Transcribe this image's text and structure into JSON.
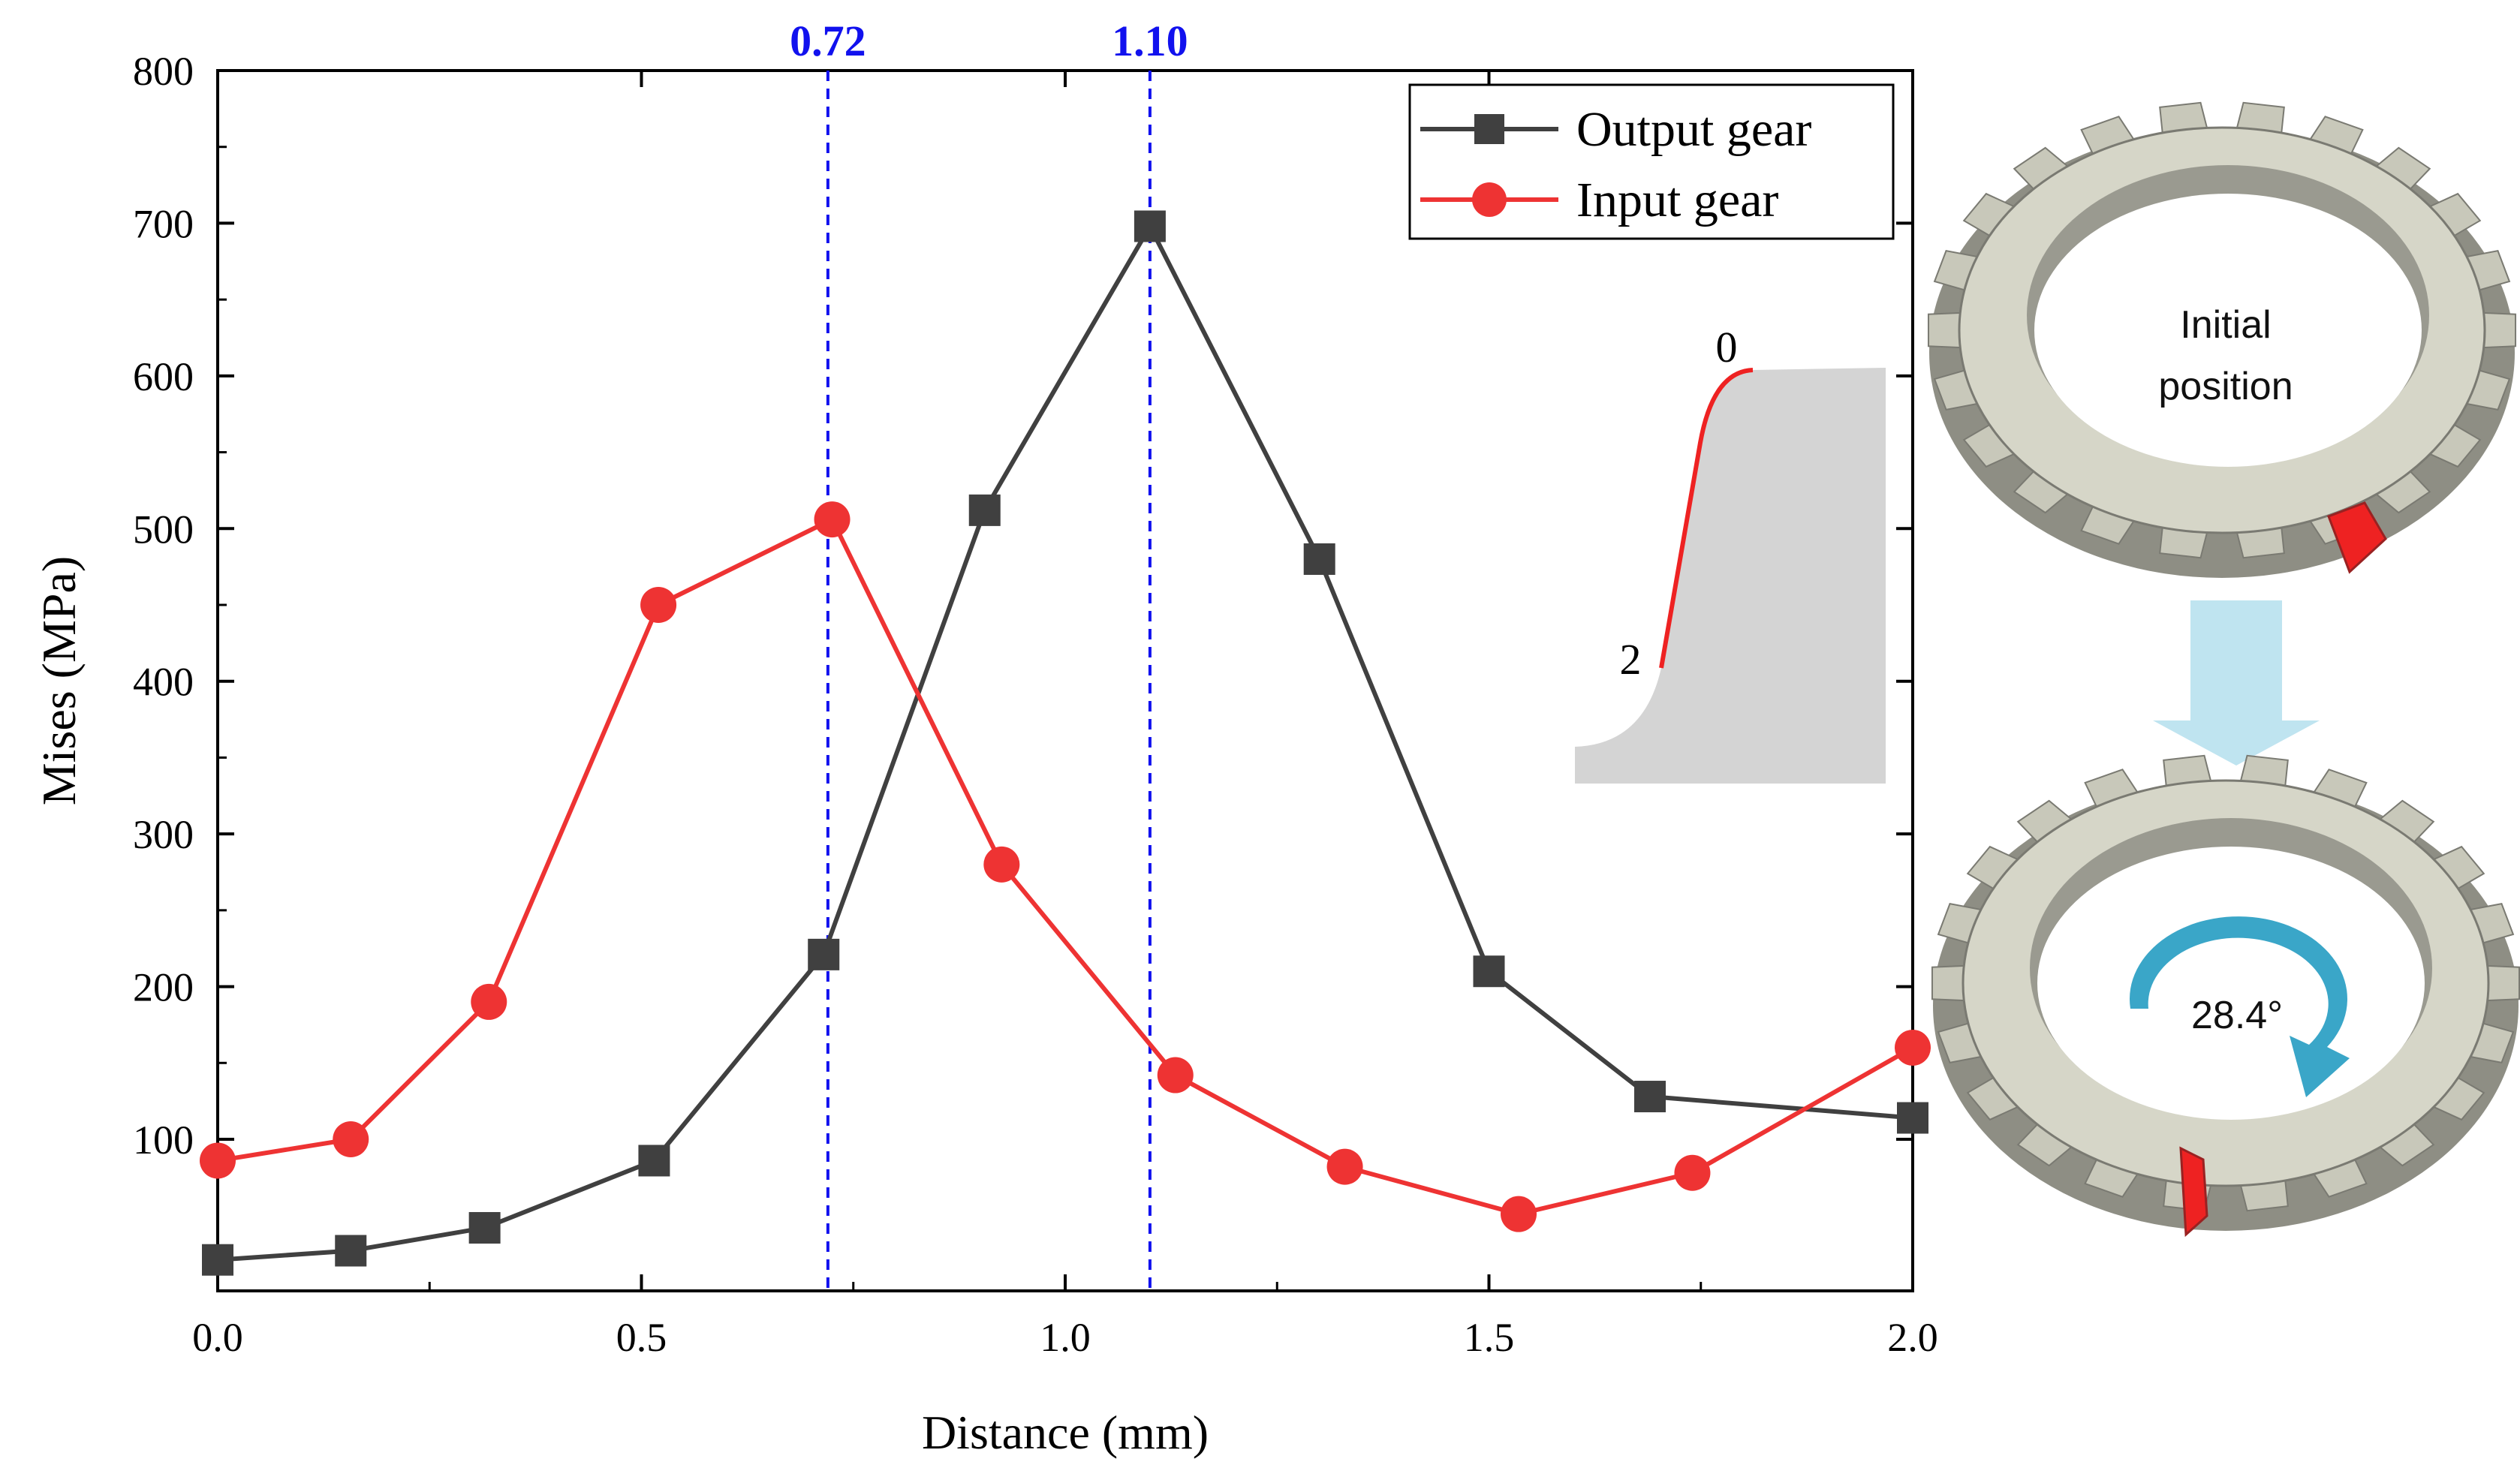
{
  "chart_data": {
    "type": "line",
    "title": "",
    "xlabel": "Distance (mm)",
    "ylabel": "Mises (MPa)",
    "xlim": [
      0.0,
      2.0
    ],
    "ylim": [
      0,
      800
    ],
    "xticks": [
      0.0,
      0.5,
      1.0,
      1.5,
      2.0
    ],
    "xtick_labels": [
      "0.0",
      "0.5",
      "1.0",
      "1.5",
      "2.0"
    ],
    "yticks": [
      100,
      200,
      300,
      400,
      500,
      600,
      700,
      800
    ],
    "ytick_labels": [
      "100",
      "200",
      "300",
      "400",
      "500",
      "600",
      "700",
      "800"
    ],
    "legend_position": "top-right",
    "series": [
      {
        "name": "Output gear",
        "color": "#404040",
        "marker": "square",
        "x": [
          0.0,
          0.157,
          0.315,
          0.515,
          0.715,
          0.905,
          1.1,
          1.3,
          1.5,
          1.69,
          2.0
        ],
        "y": [
          21,
          27,
          42,
          86,
          221,
          512,
          698,
          480,
          210,
          128,
          114
        ]
      },
      {
        "name": "Input gear",
        "color": "#ee3333",
        "marker": "circle",
        "x": [
          0.0,
          0.157,
          0.32,
          0.52,
          0.725,
          0.925,
          1.13,
          1.33,
          1.535,
          1.74,
          2.0
        ],
        "y": [
          86,
          100,
          190,
          450,
          506,
          280,
          142,
          82,
          51,
          78,
          160
        ]
      }
    ],
    "reference_lines": [
      {
        "x": 0.72,
        "label": "0.72",
        "color": "#1111ee"
      },
      {
        "x": 1.1,
        "label": "1.10",
        "color": "#1111ee"
      }
    ]
  },
  "inset": {
    "label_top": "0",
    "label_bottom": "2",
    "fill_color": "#d4d4d4",
    "highlight_color": "#ee2222"
  },
  "gear_panel": {
    "initial_label_line1": "Initial",
    "initial_label_line2": "position",
    "rotation_label": "28.4°",
    "gear_color": "#d6d6c8",
    "arrow_color": "#bfe4f0",
    "rotation_arrow_color": "#3aa6c8",
    "marker_color": "#ee2222"
  }
}
